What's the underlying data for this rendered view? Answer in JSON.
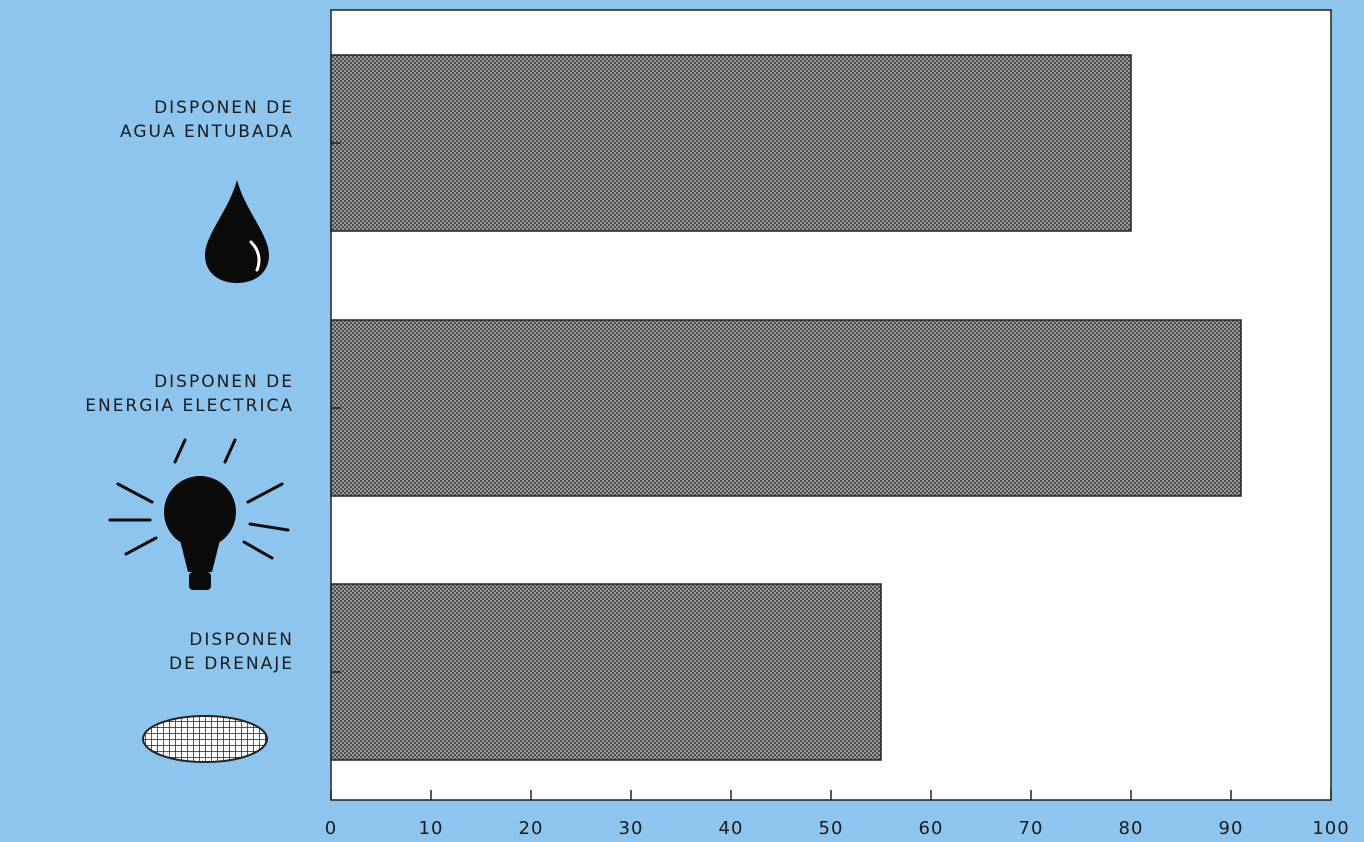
{
  "chart_data": {
    "type": "bar",
    "orientation": "horizontal",
    "categories": [
      [
        "DISPONEN DE",
        "AGUA ENTUBADA"
      ],
      [
        "DISPONEN DE",
        "ENERGIA ELECTRICA"
      ],
      [
        "DISPONEN",
        "DE DRENAJE"
      ]
    ],
    "values": [
      80,
      91,
      55
    ],
    "xlim": [
      0,
      100
    ],
    "xticks": [
      "0",
      "10",
      "20",
      "30",
      "40",
      "50",
      "60",
      "70",
      "80",
      "90",
      "100"
    ],
    "grid": false,
    "icons": [
      "water-drop-icon",
      "light-bulb-icon",
      "drain-grate-icon"
    ],
    "colors": {
      "background": "#8ec5ee",
      "plot_area": "#ffffff",
      "bar_fill": "#8a8a8a",
      "bar_pattern": "#5a5a5a",
      "text": "#1a1a1a"
    }
  }
}
